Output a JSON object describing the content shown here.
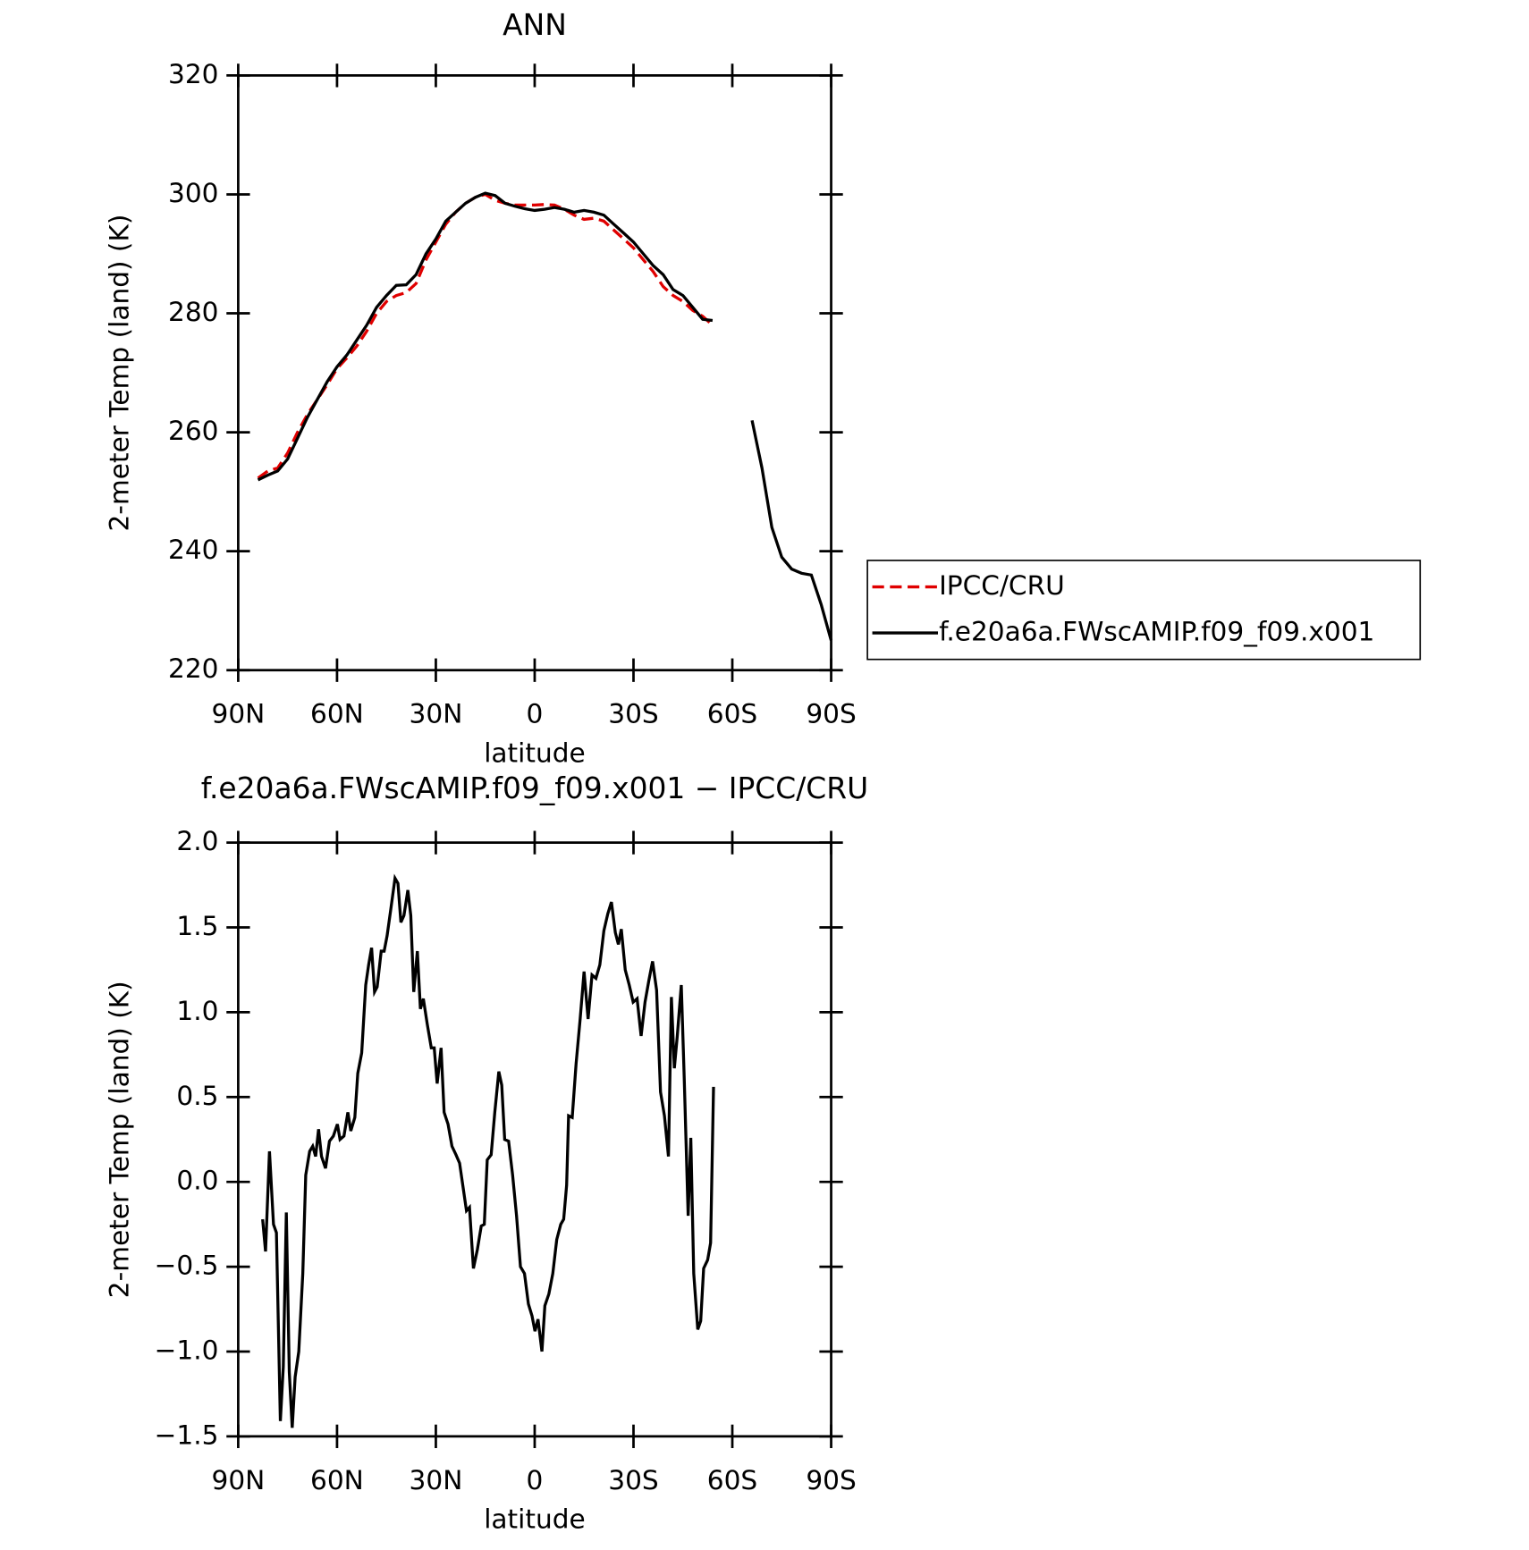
{
  "chart_data": [
    {
      "type": "line",
      "title": "ANN",
      "xlabel": "latitude",
      "ylabel": "2-meter Temp (land) (K)",
      "x": [
        84,
        81,
        78,
        75,
        72,
        69,
        66,
        63,
        60,
        57,
        54,
        51,
        48,
        45,
        42,
        39,
        36,
        33,
        30,
        27,
        24,
        21,
        18,
        15,
        12,
        9,
        6,
        3,
        0,
        -3,
        -6,
        -9,
        -12,
        -15,
        -18,
        -21,
        -24,
        -27,
        -30,
        -33,
        -36,
        -39,
        -42,
        -45,
        -48,
        -51,
        -54,
        -57,
        -60,
        -63,
        -66,
        -69,
        -72,
        -75,
        -78,
        -81,
        -84,
        -87,
        -90
      ],
      "series": [
        {
          "name": "IPCC/CRU",
          "color": "#e00000",
          "dash": true,
          "values": [
            252.3,
            253.5,
            254,
            256.5,
            260,
            263,
            265.5,
            268,
            270.7,
            272.5,
            274.5,
            277,
            280,
            282,
            283,
            283.5,
            285,
            289,
            292,
            295,
            297,
            298.5,
            299.5,
            300,
            299,
            298.5,
            298.2,
            298.2,
            298.2,
            298.3,
            298.2,
            297.5,
            296.5,
            295.8,
            296,
            295.5,
            294,
            292.5,
            291,
            289,
            287,
            284.5,
            283,
            282,
            280.5,
            279.5,
            278,
            null,
            null,
            null,
            null,
            null,
            null,
            null,
            null,
            null,
            null,
            null,
            null
          ]
        },
        {
          "name": "f.e20a6a.FWscAMIP.f09_f09.x001",
          "color": "#000000",
          "dash": false,
          "values": [
            252,
            252.8,
            253.5,
            255.5,
            259,
            262.5,
            265.5,
            268.5,
            271,
            273,
            275.5,
            278,
            281,
            283,
            284.7,
            284.8,
            286.5,
            290,
            292.5,
            295.5,
            297,
            298.5,
            299.5,
            300.2,
            299.8,
            298.5,
            298,
            297.6,
            297.3,
            297.5,
            297.8,
            297.5,
            297,
            297.3,
            297,
            296.5,
            295,
            293.5,
            292,
            290,
            288,
            286.5,
            284,
            283,
            281,
            279,
            278.8,
            null,
            null,
            null,
            262,
            254,
            244,
            239,
            237,
            236.3,
            236,
            231,
            225
          ]
        }
      ],
      "xlim": [
        90,
        -90
      ],
      "xticks": [
        {
          "value": 90,
          "label": "90N"
        },
        {
          "value": 60,
          "label": "60N"
        },
        {
          "value": 30,
          "label": "30N"
        },
        0,
        {
          "value": -30,
          "label": "30S"
        },
        {
          "value": -60,
          "label": "60S"
        },
        {
          "value": -90,
          "label": "90S"
        }
      ],
      "ylim": [
        220,
        320
      ],
      "yticks": [
        220,
        240,
        260,
        280,
        300,
        320
      ],
      "legend": "outside-right"
    },
    {
      "type": "line",
      "title": "f.e20a6a.FWscAMIP.f09_f09.x001 − IPCC/CRU",
      "xlabel": "latitude",
      "ylabel": "2-meter Temp (land) (K)",
      "x": [
        82.6,
        81.7,
        80.5,
        79.3,
        78.4,
        77.2,
        76.3,
        75.4,
        74.5,
        73.6,
        72.7,
        71.6,
        70.4,
        69.5,
        68.3,
        67.4,
        66.5,
        65.6,
        64.7,
        63.5,
        62.3,
        61.1,
        59.9,
        59.1,
        57.9,
        56.7,
        55.8,
        54.6,
        53.7,
        52.5,
        51.3,
        50.4,
        49.5,
        48.6,
        47.8,
        46.6,
        45.7,
        44.8,
        43.6,
        42.4,
        41.5,
        40.6,
        39.7,
        38.5,
        37.6,
        36.7,
        35.6,
        34.7,
        33.8,
        32.6,
        31.4,
        30.5,
        29.6,
        28.4,
        27.5,
        26.3,
        25.1,
        23.9,
        22.8,
        21.9,
        20.7,
        19.8,
        18.6,
        17.4,
        16.2,
        15.3,
        14.4,
        13.2,
        12.1,
        10.9,
        10.0,
        9.1,
        7.9,
        6.7,
        5.5,
        4.3,
        3.1,
        1.9,
        0.8,
        -0.1,
        -1.0,
        -2.2,
        -3.1,
        -4.3,
        -5.5,
        -6.7,
        -7.9,
        -8.8,
        -9.7,
        -10.3,
        -11.4,
        -12.6,
        -13.8,
        -15.0,
        -16.2,
        -17.4,
        -18.6,
        -19.8,
        -21.0,
        -22.2,
        -23.3,
        -24.5,
        -25.4,
        -26.3,
        -27.5,
        -28.7,
        -29.9,
        -31.1,
        -32.3,
        -33.5,
        -34.7,
        -35.8,
        -37.0,
        -38.2,
        -39.4,
        -40.6,
        -41.5,
        -42.4,
        -43.3,
        -44.5,
        -45.4,
        -46.6,
        -47.4,
        -48.3,
        -49.5,
        -50.4,
        -51.3,
        -52.5,
        -53.4,
        -54.3
      ],
      "series": [
        {
          "color": "#000000",
          "dash": false,
          "values": [
            -0.22,
            -0.41,
            0.18,
            -0.25,
            -0.3,
            -1.41,
            -1.09,
            -0.18,
            -1.12,
            -1.45,
            -1.15,
            -1.0,
            -0.54,
            0.04,
            0.18,
            0.21,
            0.15,
            0.31,
            0.15,
            0.08,
            0.24,
            0.27,
            0.34,
            0.25,
            0.27,
            0.41,
            0.3,
            0.38,
            0.64,
            0.76,
            1.16,
            1.28,
            1.38,
            1.12,
            1.15,
            1.36,
            1.36,
            1.45,
            1.62,
            1.79,
            1.76,
            1.53,
            1.57,
            1.72,
            1.57,
            1.12,
            1.36,
            1.02,
            1.08,
            0.93,
            0.79,
            0.79,
            0.58,
            0.79,
            0.41,
            0.34,
            0.21,
            0.16,
            0.11,
            -0.01,
            -0.17,
            -0.15,
            -0.51,
            -0.4,
            -0.26,
            -0.25,
            0.13,
            0.16,
            0.41,
            0.65,
            0.57,
            0.25,
            0.24,
            0.04,
            -0.2,
            -0.5,
            -0.54,
            -0.72,
            -0.79,
            -0.88,
            -0.81,
            -1.0,
            -0.73,
            -0.66,
            -0.54,
            -0.34,
            -0.25,
            -0.22,
            -0.02,
            0.39,
            0.38,
            0.7,
            0.96,
            1.24,
            0.96,
            1.22,
            1.2,
            1.28,
            1.48,
            1.58,
            1.65,
            1.47,
            1.4,
            1.49,
            1.25,
            1.16,
            1.06,
            1.08,
            0.86,
            1.06,
            1.19,
            1.3,
            1.13,
            0.53,
            0.39,
            0.15,
            1.09,
            0.67,
            0.86,
            1.16,
            0.61,
            -0.2,
            0.26,
            -0.54,
            -0.87,
            -0.82,
            -0.51,
            -0.46,
            -0.36,
            0.56
          ]
        }
      ],
      "xlim": [
        90,
        -90
      ],
      "xticks": [
        {
          "value": 90,
          "label": "90N"
        },
        {
          "value": 60,
          "label": "60N"
        },
        {
          "value": 30,
          "label": "30N"
        },
        0,
        {
          "value": -30,
          "label": "30S"
        },
        {
          "value": -60,
          "label": "60S"
        },
        {
          "value": -90,
          "label": "90S"
        }
      ],
      "ylim": [
        -1.5,
        2.0
      ],
      "yticks": [
        {
          "value": -1.5,
          "label": "−1.5"
        },
        {
          "value": -1.0,
          "label": "−1.0"
        },
        {
          "value": -0.5,
          "label": "−0.5"
        },
        {
          "value": 0,
          "label": "0.0"
        },
        0.5,
        {
          "value": 1,
          "label": "1.0"
        },
        1.5,
        {
          "value": 2,
          "label": "2.0"
        }
      ]
    }
  ]
}
